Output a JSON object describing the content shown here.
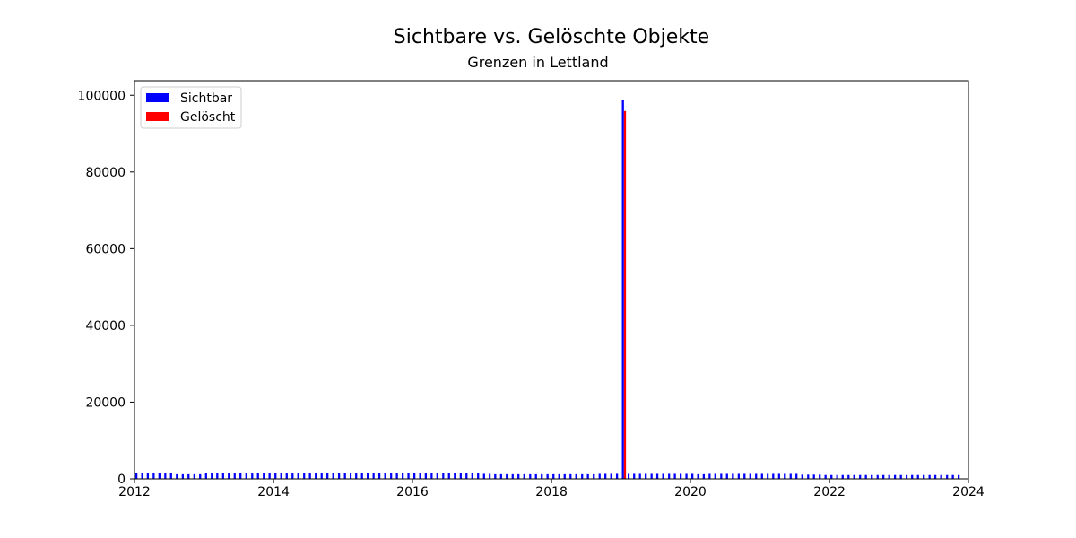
{
  "chart_data": {
    "type": "bar",
    "title": "Sichtbare vs. Gelöschte Objekte",
    "subtitle": "Grenzen in Lettland",
    "xlabel": "",
    "ylabel": "",
    "xlim": [
      "2012-01-01",
      "2024-01-01"
    ],
    "ylim": [
      0,
      103800
    ],
    "x_ticks": [
      "2012",
      "2014",
      "2016",
      "2018",
      "2020",
      "2022",
      "2024"
    ],
    "y_ticks": [
      0,
      20000,
      40000,
      60000,
      80000,
      100000
    ],
    "grid": false,
    "legend_position": "top-left",
    "period": "monthly",
    "series": [
      {
        "name": "Sichtbar",
        "color": "#0000ff",
        "values": [
          1500,
          1500,
          1500,
          1500,
          1500,
          1500,
          1500,
          1200,
          1200,
          1200,
          1200,
          1200,
          1400,
          1400,
          1400,
          1400,
          1400,
          1400,
          1400,
          1400,
          1400,
          1400,
          1400,
          1400,
          1400,
          1400,
          1400,
          1400,
          1400,
          1400,
          1400,
          1400,
          1400,
          1400,
          1400,
          1400,
          1400,
          1400,
          1400,
          1400,
          1400,
          1400,
          1400,
          1500,
          1500,
          1600,
          1600,
          1600,
          1600,
          1600,
          1600,
          1600,
          1600,
          1600,
          1600,
          1600,
          1600,
          1600,
          1600,
          1500,
          1300,
          1300,
          1200,
          1200,
          1200,
          1200,
          1200,
          1200,
          1200,
          1200,
          1200,
          1200,
          1200,
          1200,
          1200,
          1200,
          1200,
          1200,
          1200,
          1200,
          1300,
          1300,
          1300,
          1300,
          98800,
          1300,
          1300,
          1300,
          1300,
          1300,
          1300,
          1300,
          1300,
          1300,
          1300,
          1300,
          1300,
          1200,
          1200,
          1300,
          1300,
          1300,
          1300,
          1300,
          1300,
          1300,
          1300,
          1300,
          1300,
          1300,
          1300,
          1300,
          1300,
          1300,
          1300,
          1100,
          1100,
          1100,
          1100,
          1000,
          1000,
          1000,
          1000,
          1000,
          1000,
          1000,
          1000,
          1000,
          1000,
          1000,
          1000,
          1000,
          1000,
          1000,
          1000,
          1000,
          1000,
          1000,
          1000,
          1000,
          1000,
          1000,
          1000
        ]
      },
      {
        "name": "Gelöscht",
        "color": "#ff0000",
        "values": [
          0,
          0,
          0,
          0,
          0,
          0,
          0,
          0,
          0,
          0,
          0,
          0,
          0,
          0,
          0,
          0,
          0,
          0,
          0,
          0,
          0,
          0,
          0,
          0,
          0,
          0,
          0,
          0,
          0,
          0,
          0,
          0,
          0,
          0,
          0,
          0,
          0,
          0,
          0,
          0,
          0,
          0,
          0,
          0,
          0,
          0,
          0,
          0,
          0,
          0,
          0,
          0,
          0,
          0,
          0,
          0,
          0,
          0,
          0,
          0,
          0,
          0,
          0,
          0,
          0,
          0,
          0,
          0,
          0,
          0,
          0,
          0,
          0,
          0,
          0,
          0,
          0,
          0,
          0,
          0,
          0,
          0,
          0,
          0,
          95900,
          0,
          0,
          0,
          0,
          0,
          0,
          0,
          0,
          0,
          0,
          0,
          0,
          0,
          0,
          0,
          0,
          0,
          0,
          0,
          0,
          0,
          0,
          0,
          0,
          0,
          0,
          0,
          0,
          0,
          0,
          0,
          0,
          0,
          0,
          0,
          0,
          0,
          0,
          0,
          0,
          0,
          0,
          0,
          0,
          0,
          0,
          0,
          0,
          0,
          0,
          0,
          0,
          0,
          0,
          0,
          0,
          0,
          0
        ]
      }
    ]
  }
}
